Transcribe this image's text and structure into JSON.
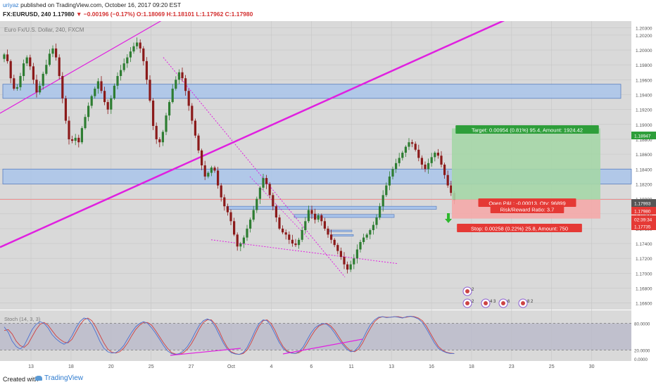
{
  "header": {
    "author": "uriyaz",
    "published": "published on TradingView.com, October 16, 2017 09:20 EST",
    "symbol": "FX:EURUSD, 240",
    "last": "1.17980",
    "change": "▼ −0.00196 (−0.17%)",
    "ohlc_o": "O:1.18069",
    "ohlc_h": "H:1.18101",
    "ohlc_l": "L:1.17962",
    "ohlc_c": "C:1.17980"
  },
  "colors": {
    "up": "#2e7d32",
    "down": "#8b1a1a",
    "zone": "#a9c4ea",
    "trend": "#e020e0",
    "target_zone": "#a5d6a7",
    "stop_zone": "#f4a9a9",
    "price_line": "#ff6b6b",
    "stoch_k": "#4a6fd0",
    "stoch_d": "#d04040"
  },
  "chart_data": {
    "type": "candlestick",
    "title": "Euro Fx/U.S. Dollar, 240, FXCM",
    "x_tick_labels": [
      "13",
      "18",
      "20",
      "25",
      "27",
      "Oct",
      "4",
      "6",
      "11",
      "13",
      "16",
      "18",
      "23",
      "25",
      "30"
    ],
    "y_tick_labels": [
      "1.20300",
      "1.20200",
      "1.20000",
      "1.19800",
      "1.19600",
      "1.19400",
      "1.19200",
      "1.19000",
      "1.18800",
      "1.18600",
      "1.18400",
      "1.18200",
      "1.18000",
      "1.17800",
      "1.17600",
      "1.17400",
      "1.17200",
      "1.17000",
      "1.16800",
      "1.16600"
    ],
    "ylim": [
      1.1655,
      1.2035
    ],
    "price_labels": [
      {
        "label": "1.18947",
        "value": 1.18947,
        "role": "target"
      },
      {
        "label": "1.17993",
        "value": 1.17993,
        "role": "last"
      },
      {
        "label": "1.17980",
        "value": 1.1798,
        "role": "close"
      },
      {
        "label": "02:39:34",
        "value": 1.17875,
        "role": "countdown"
      },
      {
        "label": "1.17735",
        "value": 1.17735,
        "role": "stop"
      }
    ],
    "closes": [
      1.1994,
      1.1985,
      1.1962,
      1.1948,
      1.195,
      1.1965,
      1.1982,
      1.199,
      1.1978,
      1.196,
      1.1943,
      1.1952,
      1.1968,
      1.198,
      1.1995,
      1.2002,
      1.199,
      1.1965,
      1.1935,
      1.1905,
      1.188,
      1.1878,
      1.1882,
      1.1876,
      1.1895,
      1.191,
      1.1925,
      1.1938,
      1.1948,
      1.1958,
      1.1945,
      1.193,
      1.192,
      1.1935,
      1.1952,
      1.1965,
      1.1973,
      1.1982,
      1.199,
      1.1998,
      1.2005,
      1.201,
      1.2002,
      1.1985,
      1.196,
      1.1932,
      1.1898,
      1.188,
      1.1876,
      1.189,
      1.1912,
      1.193,
      1.1948,
      1.196,
      1.197,
      1.1962,
      1.1945,
      1.1925,
      1.1905,
      1.1885,
      1.1865,
      1.1845,
      1.183,
      1.1835,
      1.1842,
      1.1838,
      1.1818,
      1.1802,
      1.179,
      1.1782,
      1.177,
      1.1752,
      1.1736,
      1.174,
      1.1748,
      1.176,
      1.1772,
      1.1785,
      1.18,
      1.1815,
      1.1828,
      1.182,
      1.1805,
      1.179,
      1.1775,
      1.176,
      1.1755,
      1.1752,
      1.1745,
      1.174,
      1.1738,
      1.1745,
      1.1758,
      1.177,
      1.1785,
      1.178,
      1.1772,
      1.1778,
      1.177,
      1.176,
      1.1752,
      1.1745,
      1.1738,
      1.173,
      1.1722,
      1.1712,
      1.1705,
      1.1712,
      1.172,
      1.1732,
      1.1742,
      1.1748,
      1.1752,
      1.1758,
      1.1765,
      1.1775,
      1.179,
      1.1805,
      1.1818,
      1.183,
      1.184,
      1.1848,
      1.1855,
      1.1862,
      1.187,
      1.1876,
      1.1874,
      1.1866,
      1.1855,
      1.1846,
      1.184,
      1.1848,
      1.1856,
      1.1862,
      1.1858,
      1.1846,
      1.1832,
      1.1818,
      1.1808,
      1.1798
    ],
    "zones": [
      {
        "name": "resistance",
        "y1": 1.1954,
        "y2": 1.1935
      },
      {
        "name": "support",
        "y1": 1.184,
        "y2": 1.182
      }
    ],
    "stochastic": {
      "title": "Stoch (14, 3, 3)",
      "y_tick_labels": [
        "80.0000",
        "20.0000",
        "0.0000"
      ],
      "ylim": [
        0,
        100
      ],
      "k": [
        72,
        60,
        40,
        28,
        22,
        30,
        48,
        66,
        78,
        84,
        80,
        70,
        55,
        45,
        38,
        33,
        38,
        52,
        70,
        84,
        92,
        90,
        78,
        60,
        40,
        24,
        16,
        13,
        14,
        20,
        30,
        45,
        60,
        72,
        80,
        84,
        80,
        70,
        58,
        44,
        30,
        18,
        12,
        10,
        12,
        18,
        28,
        42,
        60,
        76,
        86,
        90,
        86,
        72,
        54,
        36,
        22,
        14,
        11,
        10,
        14,
        26,
        44,
        64,
        80,
        88,
        86,
        74,
        56,
        38,
        24,
        16,
        13,
        12,
        16,
        26,
        42,
        58,
        70,
        76,
        80,
        78,
        70,
        58,
        44,
        32,
        22,
        16,
        18,
        28,
        44,
        62,
        78,
        88,
        94,
        95,
        93,
        94,
        95,
        94,
        92,
        95,
        96,
        94,
        90,
        82,
        68,
        52,
        36,
        24,
        18,
        14,
        12,
        12
      ],
      "d": [
        64,
        66,
        56,
        40,
        30,
        26,
        34,
        50,
        66,
        78,
        82,
        76,
        64,
        52,
        44,
        38,
        36,
        44,
        60,
        76,
        88,
        92,
        86,
        72,
        54,
        36,
        22,
        15,
        13,
        16,
        24,
        36,
        52,
        66,
        76,
        82,
        82,
        76,
        64,
        50,
        36,
        24,
        14,
        11,
        10,
        14,
        22,
        34,
        50,
        68,
        82,
        88,
        88,
        78,
        62,
        42,
        26,
        16,
        12,
        10,
        12,
        20,
        36,
        56,
        74,
        86,
        88,
        80,
        64,
        44,
        28,
        18,
        14,
        12,
        14,
        20,
        34,
        50,
        64,
        74,
        78,
        80,
        74,
        64,
        50,
        36,
        26,
        18,
        16,
        22,
        36,
        54,
        70,
        84,
        92,
        95,
        94,
        94,
        95,
        95,
        93,
        94,
        96,
        95,
        92,
        86,
        74,
        58,
        42,
        28,
        20,
        15,
        13,
        12
      ]
    },
    "position": {
      "target_label": "Target: 0.00954 (0.81%) 95.4, Amount: 1924.42",
      "open_label": "Open P&L: -0.00013, Qty: 96899",
      "rr_label": "Risk/Reward Ratio: 3.7",
      "stop_label": "Stop: 0.00258 (0.22%) 25.8, Amount: 750",
      "entry": 1.1799,
      "target": 1.18947,
      "stop": 1.17735
    },
    "event_badges": [
      "2",
      "2",
      "4 3",
      "6",
      "8 2"
    ]
  },
  "footer": {
    "created": "Created with",
    "brand": "TradingView"
  }
}
